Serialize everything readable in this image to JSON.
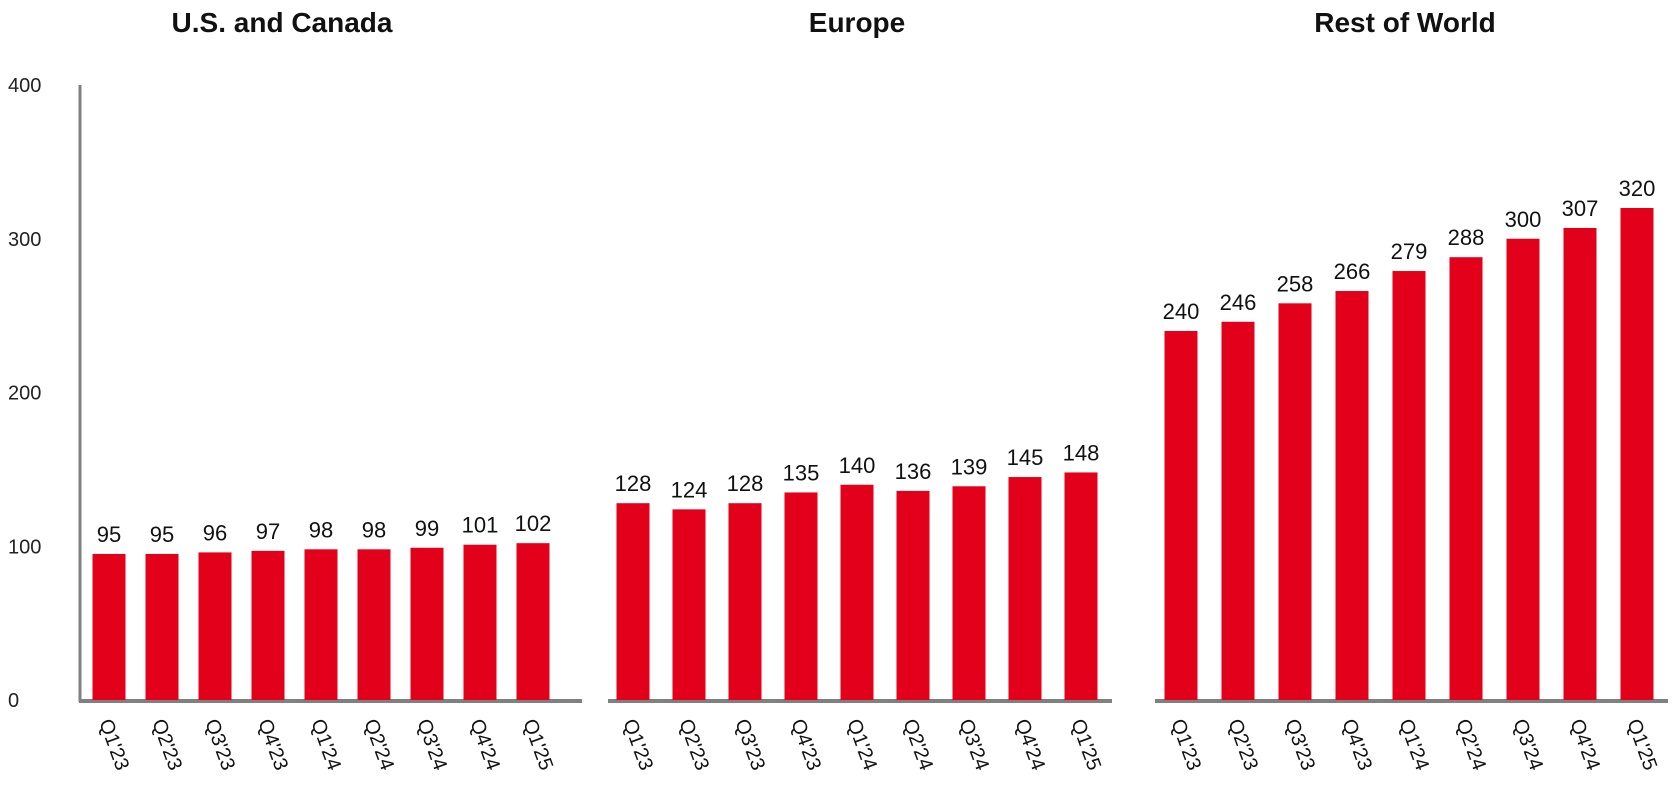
{
  "chart_data": {
    "type": "bar",
    "ylim": [
      0,
      400
    ],
    "yticks": [
      "0",
      "100",
      "200",
      "300",
      "400"
    ],
    "grid": false,
    "bar_color": "#E2001A",
    "axis_color": "#808080",
    "categories": [
      "Q1'23",
      "Q2'23",
      "Q3'23",
      "Q4'23",
      "Q1'24",
      "Q2'24",
      "Q3'24",
      "Q4'24",
      "Q1'25"
    ],
    "panels": [
      {
        "title": "U.S. and Canada",
        "values": [
          95,
          95,
          96,
          97,
          98,
          98,
          99,
          101,
          102
        ]
      },
      {
        "title": "Europe",
        "values": [
          128,
          124,
          128,
          135,
          140,
          136,
          139,
          145,
          148
        ]
      },
      {
        "title": "Rest of World",
        "values": [
          240,
          246,
          258,
          266,
          279,
          288,
          300,
          307,
          320
        ]
      }
    ]
  }
}
